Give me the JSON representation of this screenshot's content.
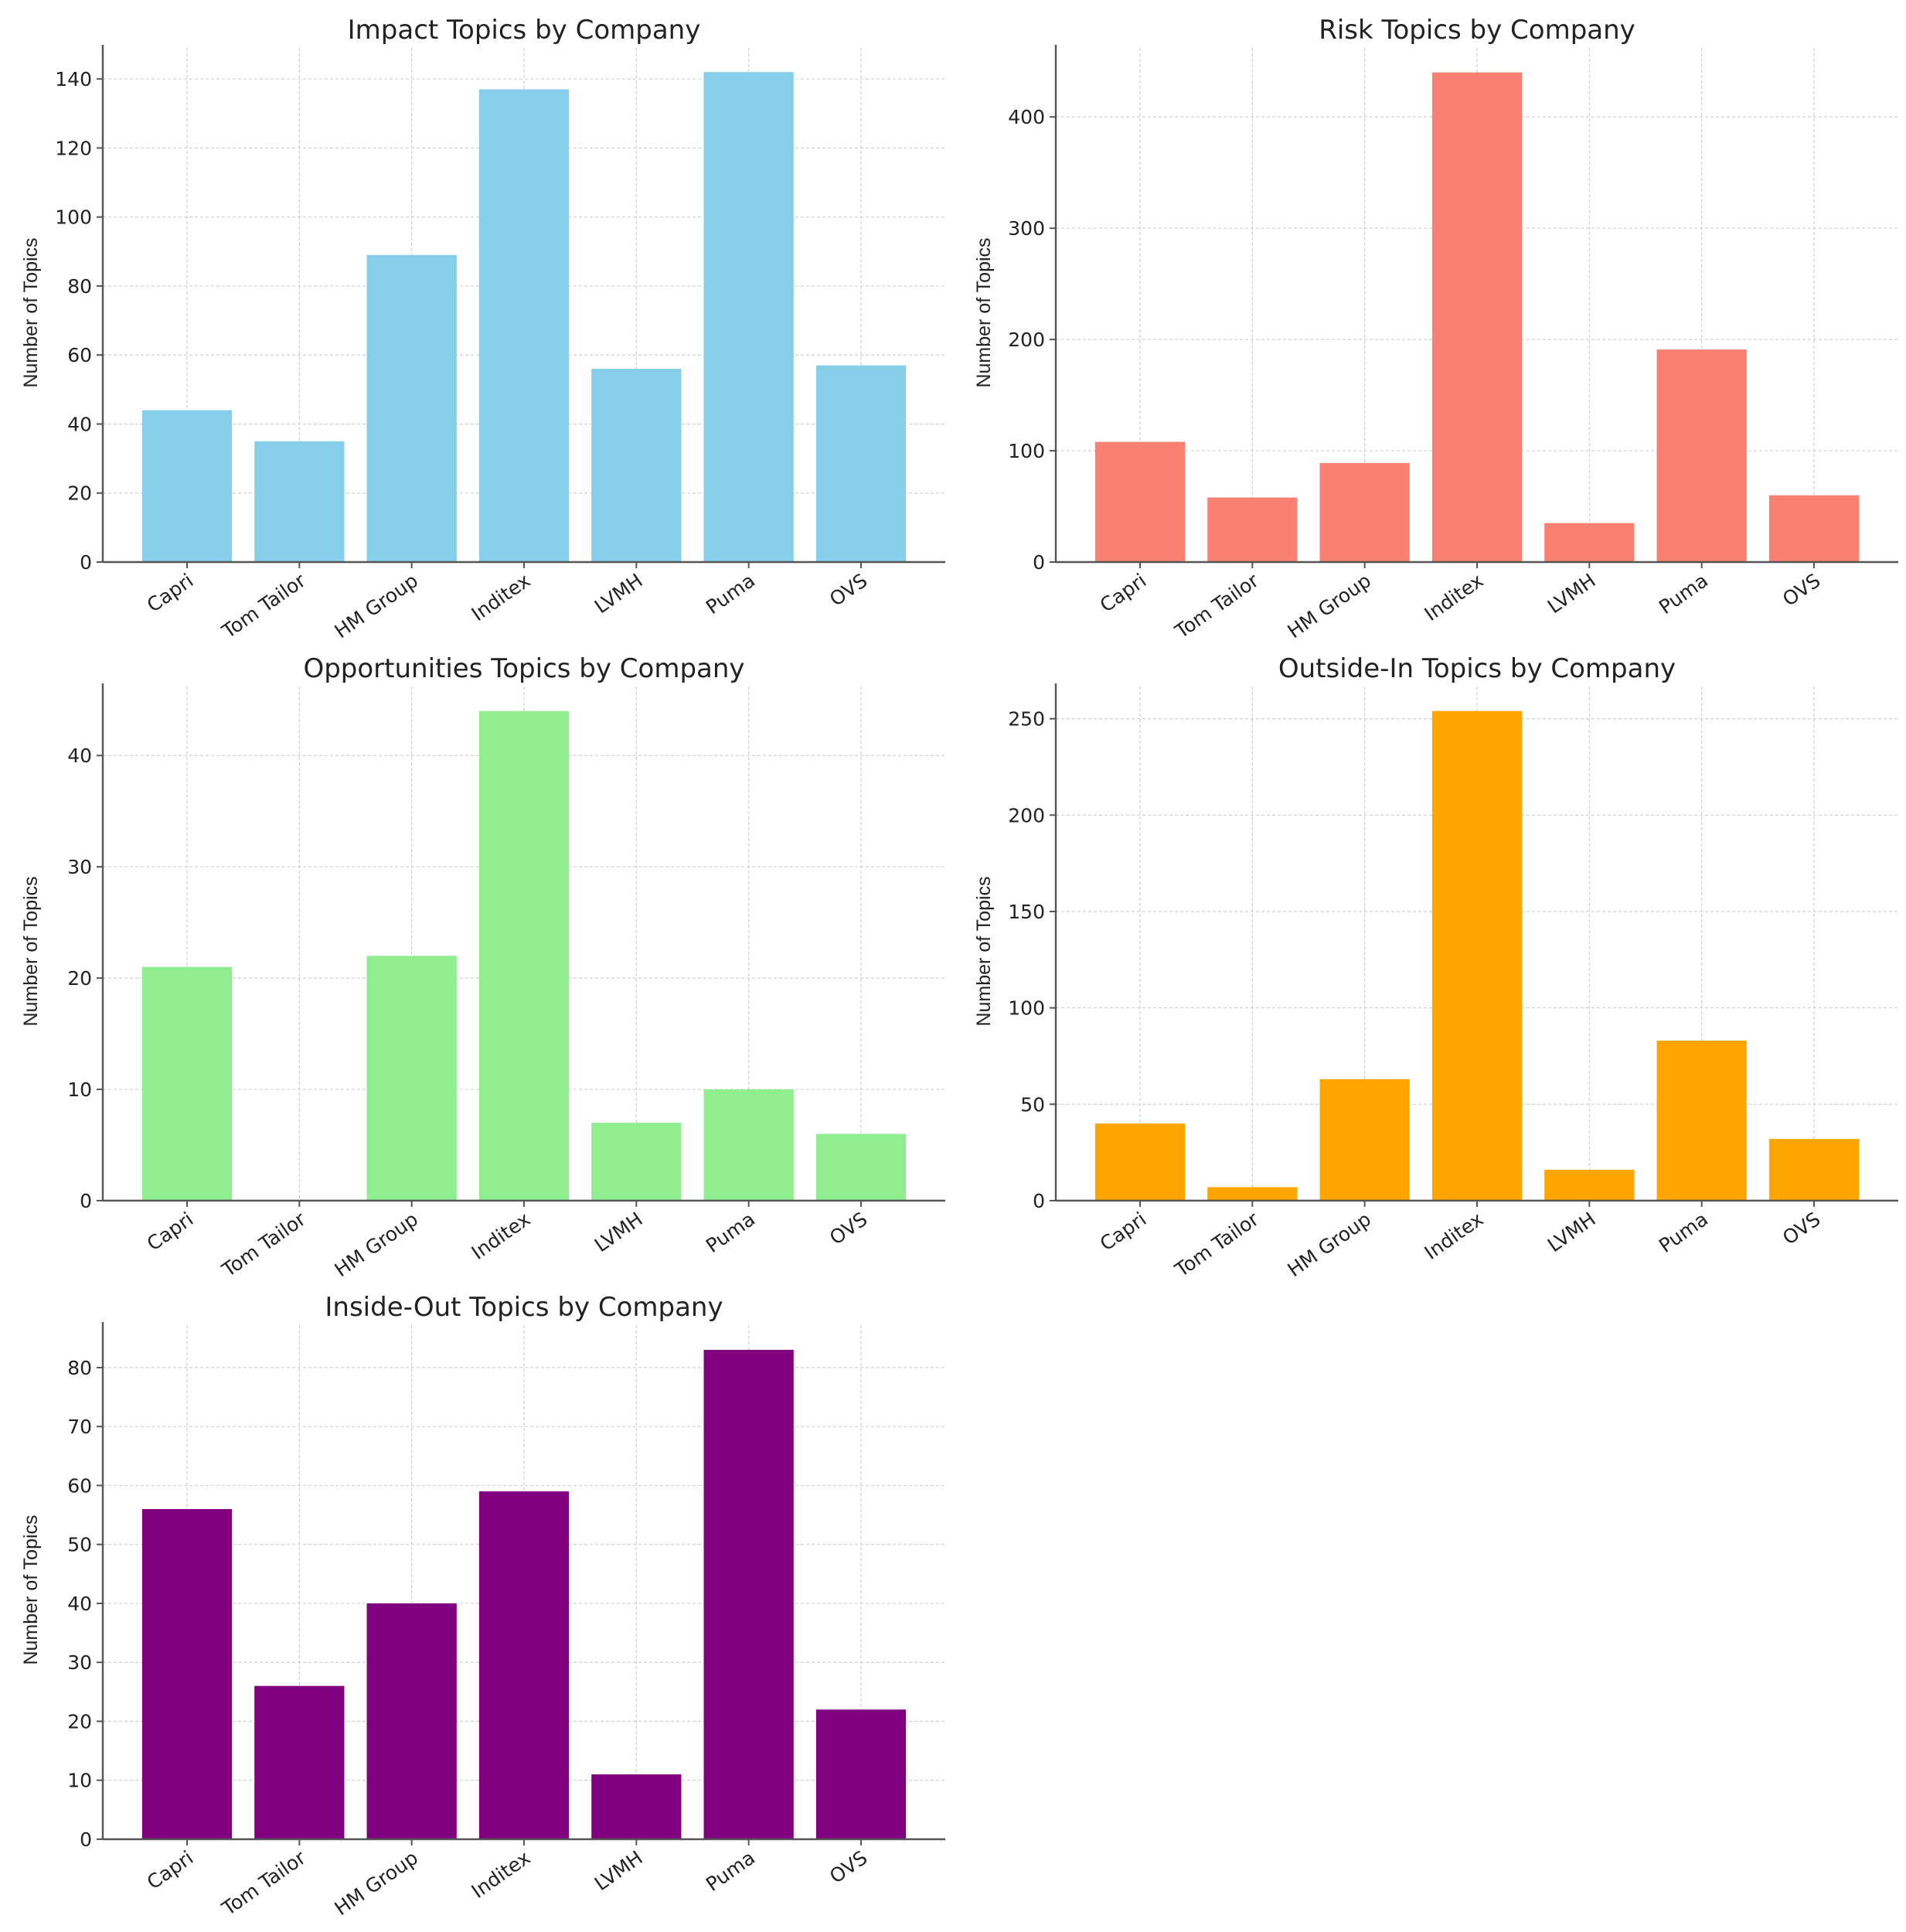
{
  "chart_data": [
    {
      "type": "bar",
      "title": "Impact Topics by Company",
      "xlabel": "",
      "ylabel": "Number of Topics",
      "categories": [
        "Capri",
        "Tom Tailor",
        "HM Group",
        "Inditex",
        "LVMH",
        "Puma",
        "OVS"
      ],
      "values": [
        44,
        35,
        89,
        137,
        56,
        142,
        57
      ],
      "ylim": [
        0,
        149
      ],
      "yticks": [
        0,
        20,
        40,
        60,
        80,
        100,
        120,
        140
      ],
      "color": "#87CEEB",
      "grid": true
    },
    {
      "type": "bar",
      "title": "Risk Topics by Company",
      "xlabel": "",
      "ylabel": "Number of Topics",
      "categories": [
        "Capri",
        "Tom Tailor",
        "HM Group",
        "Inditex",
        "LVMH",
        "Puma",
        "OVS"
      ],
      "values": [
        108,
        58,
        89,
        440,
        35,
        191,
        60
      ],
      "ylim": [
        0,
        462
      ],
      "yticks": [
        0,
        100,
        200,
        300,
        400
      ],
      "color": "#FA8072",
      "grid": true
    },
    {
      "type": "bar",
      "title": "Opportunities Topics by Company",
      "xlabel": "",
      "ylabel": "Number of Topics",
      "categories": [
        "Capri",
        "Tom Tailor",
        "HM Group",
        "Inditex",
        "LVMH",
        "Puma",
        "OVS"
      ],
      "values": [
        21,
        0,
        22,
        44,
        7,
        10,
        6
      ],
      "ylim": [
        0,
        46.2
      ],
      "yticks": [
        0,
        10,
        20,
        30,
        40
      ],
      "color": "#90EE90",
      "grid": true
    },
    {
      "type": "bar",
      "title": "Outside-In Topics by Company",
      "xlabel": "",
      "ylabel": "Number of Topics",
      "categories": [
        "Capri",
        "Tom Tailor",
        "HM Group",
        "Inditex",
        "LVMH",
        "Puma",
        "OVS"
      ],
      "values": [
        40,
        7,
        63,
        254,
        16,
        83,
        32
      ],
      "ylim": [
        0,
        266.7
      ],
      "yticks": [
        0,
        50,
        100,
        150,
        200,
        250
      ],
      "color": "#FFA500",
      "grid": true
    },
    {
      "type": "bar",
      "title": "Inside-Out Topics by Company",
      "xlabel": "",
      "ylabel": "Number of Topics",
      "categories": [
        "Capri",
        "Tom Tailor",
        "HM Group",
        "Inditex",
        "LVMH",
        "Puma",
        "OVS"
      ],
      "values": [
        56,
        26,
        40,
        59,
        11,
        83,
        22
      ],
      "ylim": [
        0,
        87.2
      ],
      "yticks": [
        0,
        10,
        20,
        30,
        40,
        50,
        60,
        70,
        80
      ],
      "color": "#800080",
      "grid": true
    }
  ]
}
